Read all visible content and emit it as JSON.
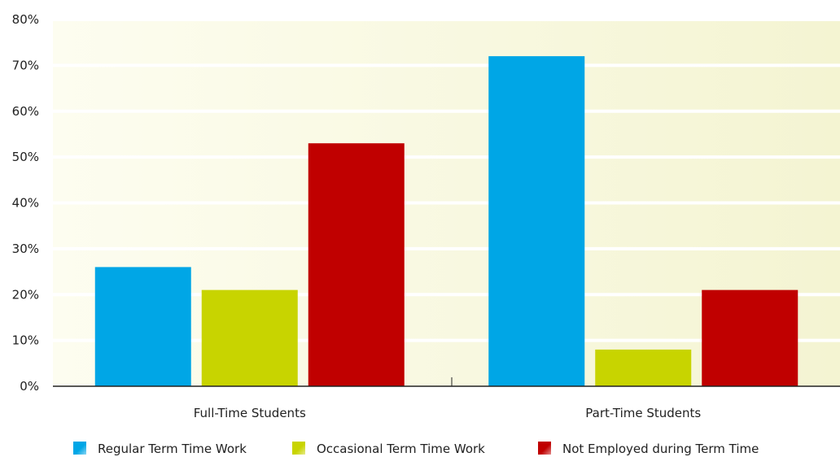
{
  "chart_data": {
    "type": "bar",
    "categories": [
      "Full-Time Students",
      "Part-Time Students"
    ],
    "series": [
      {
        "name": "Regular Term Time Work",
        "values": [
          26,
          72
        ],
        "color": "#00a6e6"
      },
      {
        "name": "Occasional Term Time Work",
        "values": [
          21,
          8
        ],
        "color": "#c8d400"
      },
      {
        "name": "Not Employed during Term Time",
        "values": [
          53,
          21
        ],
        "color": "#c00000"
      }
    ],
    "yticks": [
      "0%",
      "10%",
      "20%",
      "30%",
      "40%",
      "50%",
      "60%",
      "70%",
      "80%"
    ],
    "ylim": [
      0,
      80
    ],
    "grid": true,
    "legend_position": "bottom",
    "title": "",
    "xlabel": "",
    "ylabel": ""
  }
}
